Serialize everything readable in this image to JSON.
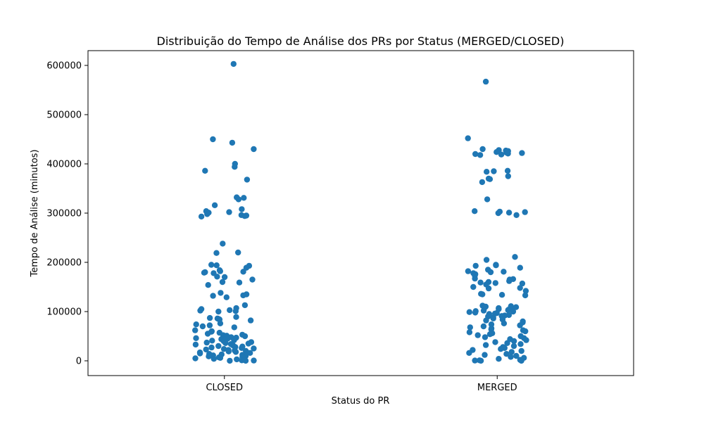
{
  "chart_data": {
    "type": "scatter",
    "title": "Distribuição do Tempo de Análise dos PRs por Status (MERGED/CLOSED)",
    "xlabel": "Status do PR",
    "ylabel": "Tempo de Análise (minutos)",
    "categories": [
      "CLOSED",
      "MERGED"
    ],
    "ylim": [
      -30000,
      630000
    ],
    "yticks": [
      0,
      100000,
      200000,
      300000,
      400000,
      500000,
      600000
    ],
    "ytick_labels": [
      "0",
      "100000",
      "200000",
      "300000",
      "400000",
      "500000",
      "600000"
    ],
    "grid": false,
    "marker_color": "#1f77b4",
    "series": [
      {
        "category": "CLOSED",
        "values": [
          603000,
          450000,
          443000,
          430000,
          400000,
          394000,
          386000,
          368000,
          332000,
          331000,
          328000,
          316000,
          308000,
          304000,
          302000,
          301000,
          298000,
          296000,
          295000,
          294000,
          293000,
          238000,
          220000,
          219000,
          195000,
          194000,
          193000,
          189000,
          184000,
          182000,
          181000,
          180000,
          179000,
          178000,
          171000,
          170000,
          165000,
          160000,
          159000,
          154000,
          138000,
          135000,
          133000,
          132000,
          129000,
          113000,
          107000,
          105000,
          103000,
          102000,
          101000,
          100000,
          89000,
          87000,
          86000,
          85000,
          84000,
          82000,
          76000,
          74000,
          72000,
          70000,
          68000,
          62000,
          60000,
          59000,
          57000,
          55000,
          53000,
          52000,
          51000,
          50000,
          48000,
          47000,
          46000,
          45000,
          44000,
          43000,
          42000,
          41000,
          40000,
          38000,
          37000,
          36000,
          35000,
          34000,
          33000,
          32000,
          31000,
          30000,
          29000,
          28000,
          27000,
          26000,
          25000,
          24000,
          23000,
          22000,
          21000,
          20000,
          19000,
          18000,
          17000,
          16000,
          15000,
          14000,
          13000,
          12000,
          11000,
          10000,
          9000,
          8000,
          7000,
          6000,
          5000,
          4000,
          3000,
          2000,
          1000,
          500,
          200,
          100
        ]
      },
      {
        "category": "MERGED",
        "values": [
          567000,
          452000,
          430000,
          428000,
          427000,
          426000,
          425000,
          424000,
          423000,
          422000,
          421000,
          420000,
          419000,
          418000,
          386000,
          385000,
          384000,
          375000,
          370000,
          369000,
          363000,
          328000,
          304000,
          303000,
          302000,
          301000,
          300000,
          296000,
          211000,
          205000,
          195000,
          194000,
          193000,
          189000,
          185000,
          182000,
          181000,
          180000,
          178000,
          176000,
          173000,
          167000,
          166000,
          165000,
          162000,
          160000,
          159000,
          158000,
          157000,
          155000,
          150000,
          148000,
          147000,
          142000,
          136000,
          135000,
          134000,
          133000,
          112000,
          111000,
          110000,
          109000,
          108000,
          107000,
          106000,
          105000,
          104000,
          103000,
          102000,
          101000,
          100000,
          99000,
          98000,
          97000,
          96000,
          95000,
          93000,
          92000,
          91000,
          90000,
          88000,
          86000,
          84000,
          82000,
          80000,
          78000,
          76000,
          74000,
          72000,
          70000,
          68000,
          66000,
          64000,
          62000,
          60000,
          58000,
          56000,
          54000,
          52000,
          50000,
          48000,
          46000,
          44000,
          42000,
          40000,
          38000,
          36000,
          34000,
          32000,
          30000,
          28000,
          26000,
          24000,
          22000,
          20000,
          18000,
          16000,
          14000,
          12000,
          10000,
          8000,
          6000,
          4000,
          2000,
          1000,
          500,
          200,
          100
        ]
      }
    ]
  }
}
